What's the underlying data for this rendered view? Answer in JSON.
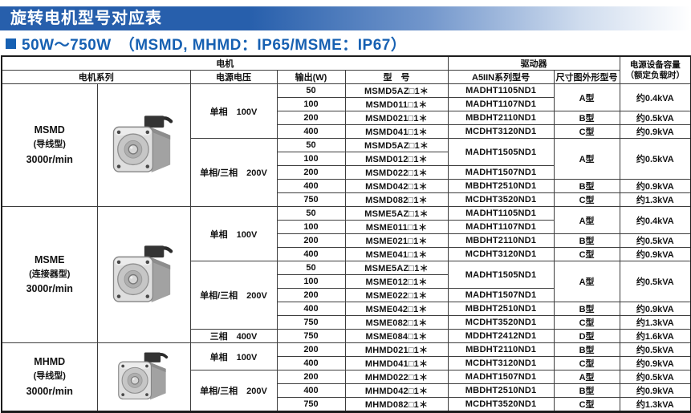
{
  "page": {
    "banner_title": "旋转电机型号对应表",
    "section_title": "50W～750W　（MSMD, MHMD：IP65/MSME：IP67）"
  },
  "colors": {
    "banner_blue": "#275fac",
    "title_blue": "#1660b2",
    "table_border": "#3d3d3d"
  },
  "table": {
    "header": {
      "motor_group": "电机",
      "driver_group": "驱动器",
      "capacity_line1": "电源设备容量",
      "capacity_line2": "（额定负载时）",
      "series": "电机系列",
      "voltage": "电源电压",
      "output": "输出(W)",
      "model": "型　号",
      "driver_model": "A5IIN系列型号",
      "frame": "尺寸图外形型号"
    },
    "sections": [
      {
        "series": {
          "name": "MSMD",
          "type": "(导线型)",
          "speed": "3000r/min",
          "image": "motor-photo-msmd"
        },
        "groups": [
          {
            "voltage": "单相　100V",
            "rows": [
              {
                "output": "50",
                "model": "MSMD5AZ□1＊",
                "driver": "MADHT1105ND1",
                "frame": "A型",
                "frame_span": 2,
                "capacity": "约0.4kVA",
                "capacity_span": 2
              },
              {
                "output": "100",
                "model": "MSMD011□1＊",
                "driver": "MADHT1107ND1"
              },
              {
                "output": "200",
                "model": "MSMD021□1＊",
                "driver": "MBDHT2110ND1",
                "frame": "B型",
                "capacity": "约0.5kVA"
              },
              {
                "output": "400",
                "model": "MSMD041□1＊",
                "driver": "MCDHT3120ND1",
                "frame": "C型",
                "capacity": "约0.9kVA"
              }
            ]
          },
          {
            "voltage": "单相/三相　200V",
            "rows": [
              {
                "output": "50",
                "model": "MSMD5AZ□1＊",
                "driver": "MADHT1505ND1",
                "driver_span": 2,
                "frame": "A型",
                "frame_span": 3,
                "capacity": "约0.5kVA",
                "capacity_span": 3
              },
              {
                "output": "100",
                "model": "MSMD012□1＊"
              },
              {
                "output": "200",
                "model": "MSMD022□1＊",
                "driver": "MADHT1507ND1"
              },
              {
                "output": "400",
                "model": "MSMD042□1＊",
                "driver": "MBDHT2510ND1",
                "frame": "B型",
                "capacity": "约0.9kVA"
              },
              {
                "output": "750",
                "model": "MSMD082□1＊",
                "driver": "MCDHT3520ND1",
                "frame": "C型",
                "capacity": "约1.3kVA"
              }
            ]
          }
        ]
      },
      {
        "series": {
          "name": "MSME",
          "type": "(连接器型)",
          "speed": "3000r/min",
          "image": "motor-photo-msme"
        },
        "groups": [
          {
            "voltage": "单相　100V",
            "rows": [
              {
                "output": "50",
                "model": "MSME5AZ□1＊",
                "driver": "MADHT1105ND1",
                "frame": "A型",
                "frame_span": 2,
                "capacity": "约0.4kVA",
                "capacity_span": 2
              },
              {
                "output": "100",
                "model": "MSME011□1＊",
                "driver": "MADHT1107ND1"
              },
              {
                "output": "200",
                "model": "MSME021□1＊",
                "driver": "MBDHT2110ND1",
                "frame": "B型",
                "capacity": "约0.5kVA"
              },
              {
                "output": "400",
                "model": "MSME041□1＊",
                "driver": "MCDHT3120ND1",
                "frame": "C型",
                "capacity": "约0.9kVA"
              }
            ]
          },
          {
            "voltage": "单相/三相　200V",
            "rows": [
              {
                "output": "50",
                "model": "MSME5AZ□1＊",
                "driver": "MADHT1505ND1",
                "driver_span": 2,
                "frame": "A型",
                "frame_span": 3,
                "capacity": "约0.5kVA",
                "capacity_span": 3
              },
              {
                "output": "100",
                "model": "MSME012□1＊"
              },
              {
                "output": "200",
                "model": "MSME022□1＊",
                "driver": "MADHT1507ND1"
              },
              {
                "output": "400",
                "model": "MSME042□1＊",
                "driver": "MBDHT2510ND1",
                "frame": "B型",
                "capacity": "约0.9kVA"
              },
              {
                "output": "750",
                "model": "MSME082□1＊",
                "driver": "MCDHT3520ND1",
                "frame": "C型",
                "capacity": "约1.3kVA"
              }
            ]
          },
          {
            "voltage": "三相　400V",
            "rows": [
              {
                "output": "750",
                "model": "MSME084□1＊",
                "driver": "MDDHT2412ND1",
                "frame": "D型",
                "capacity": "约1.6kVA"
              }
            ]
          }
        ]
      },
      {
        "series": {
          "name": "MHMD",
          "type": "(导线型)",
          "speed": "3000r/min",
          "image": "motor-photo-mhmd"
        },
        "groups": [
          {
            "voltage": "单相　100V",
            "rows": [
              {
                "output": "200",
                "model": "MHMD021□1＊",
                "driver": "MBDHT2110ND1",
                "frame": "B型",
                "capacity": "约0.5kVA"
              },
              {
                "output": "400",
                "model": "MHMD041□1＊",
                "driver": "MCDHT3120ND1",
                "frame": "C型",
                "capacity": "约0.9kVA"
              }
            ]
          },
          {
            "voltage": "单相/三相　200V",
            "rows": [
              {
                "output": "200",
                "model": "MHMD022□1＊",
                "driver": "MADHT1507ND1",
                "frame": "A型",
                "capacity": "约0.5kVA"
              },
              {
                "output": "400",
                "model": "MHMD042□1＊",
                "driver": "MBDHT2510ND1",
                "frame": "B型",
                "capacity": "约0.9kVA"
              },
              {
                "output": "750",
                "model": "MHMD082□1＊",
                "driver": "MCDHT3520ND1",
                "frame": "C型",
                "capacity": "约1.3kVA"
              }
            ]
          }
        ]
      }
    ]
  }
}
